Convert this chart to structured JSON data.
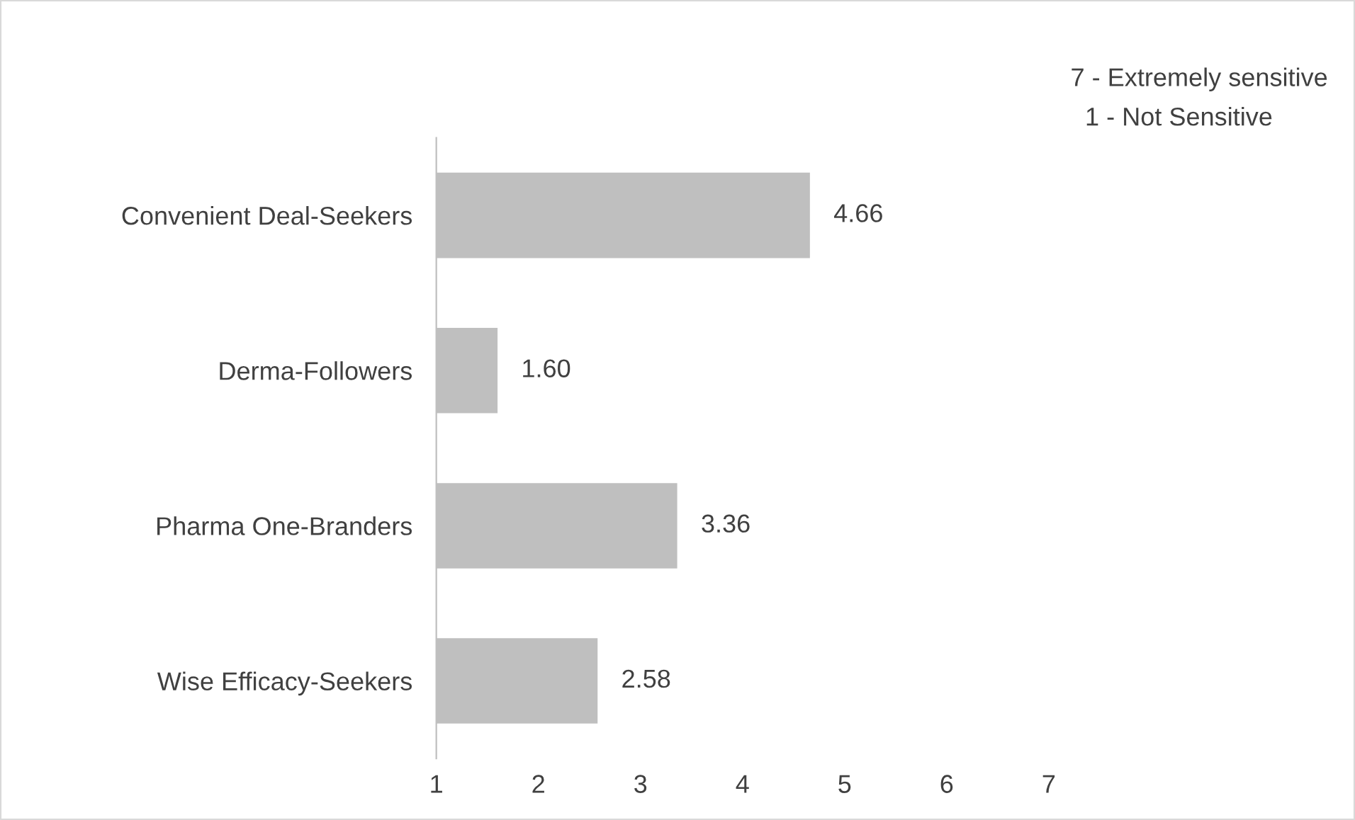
{
  "chart_data": {
    "type": "bar",
    "orientation": "horizontal",
    "categories": [
      "Convenient Deal-Seekers",
      "Derma-Followers",
      "Pharma One-Branders",
      "Wise Efficacy-Seekers"
    ],
    "values": [
      4.66,
      1.6,
      3.36,
      2.58
    ],
    "value_labels": [
      "4.66",
      "1.60",
      "3.36",
      "2.58"
    ],
    "color": "#bfbfbf",
    "xlim": [
      1,
      7
    ],
    "xticks": [
      1,
      2,
      3,
      4,
      5,
      6,
      7
    ],
    "annotations": [
      "7 - Extremely sensitive",
      "1 - Not Sensitive"
    ],
    "grid": false,
    "legend": false
  }
}
